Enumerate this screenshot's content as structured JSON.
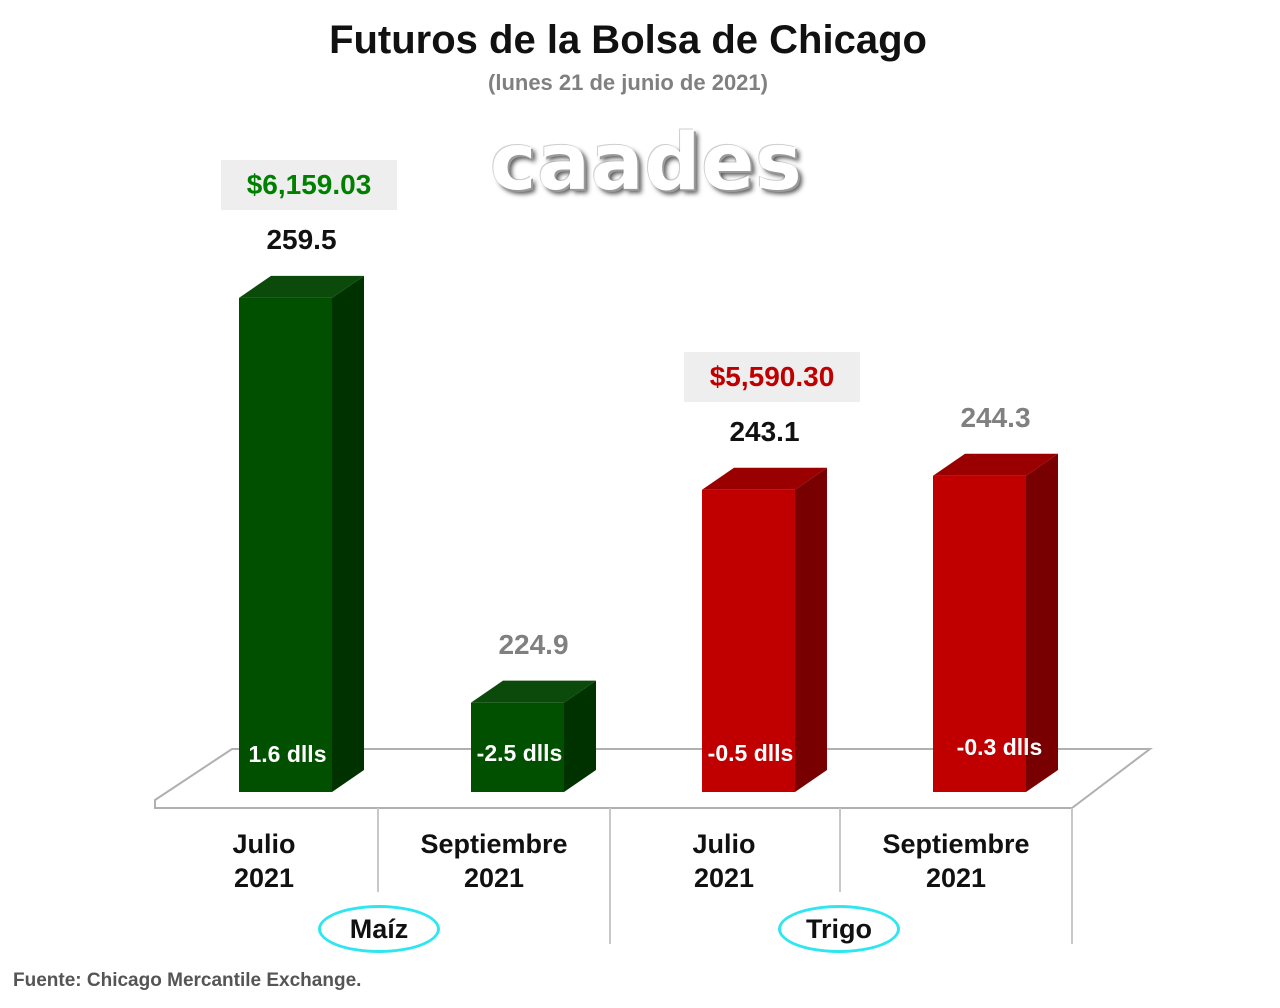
{
  "title": "Futuros de la Bolsa de Chicago",
  "subtitle": "(lunes 21 de junio de 2021)",
  "logo_text": "caades",
  "source": "Fuente: Chicago Mercantile Exchange.",
  "colors": {
    "maiz": "#005000",
    "maiz_side": "#003200",
    "maiz_top": "#0c4a0c",
    "trigo": "#c00000",
    "trigo_side": "#780000",
    "trigo_top": "#9a0000",
    "price_maiz": "#008000",
    "price_trigo": "#c00000",
    "highlight_value": "#111111",
    "muted_value": "#808080",
    "ellipse": "#2ee6f0"
  },
  "chart_data": {
    "type": "bar",
    "title": "Futuros de la Bolsa de Chicago",
    "subtitle": "(lunes 21 de junio de 2021)",
    "groups": [
      {
        "name": "Maíz",
        "categories": [
          0,
          1
        ]
      },
      {
        "name": "Trigo",
        "categories": [
          2,
          3
        ]
      }
    ],
    "categories": [
      {
        "line1": "Julio",
        "line2": "2021"
      },
      {
        "line1": "Septiembre",
        "line2": "2021"
      },
      {
        "line1": "Julio",
        "line2": "2021"
      },
      {
        "line1": "Septiembre",
        "line2": "2021"
      }
    ],
    "values": [
      259.5,
      224.9,
      243.1,
      244.3
    ],
    "value_labels": [
      "259.5",
      "224.9",
      "243.1",
      "244.3"
    ],
    "changes": [
      "1.6 dlls",
      "-2.5 dlls",
      "-0.5 dlls",
      "-0.3 dlls"
    ],
    "highlighted": [
      true,
      false,
      true,
      false
    ],
    "prices": [
      {
        "category": 0,
        "text": "$6,159.03"
      },
      {
        "category": 2,
        "text": "$5,590.30"
      }
    ],
    "ylim": [
      220,
      260
    ],
    "grid": false,
    "legend": "none"
  }
}
